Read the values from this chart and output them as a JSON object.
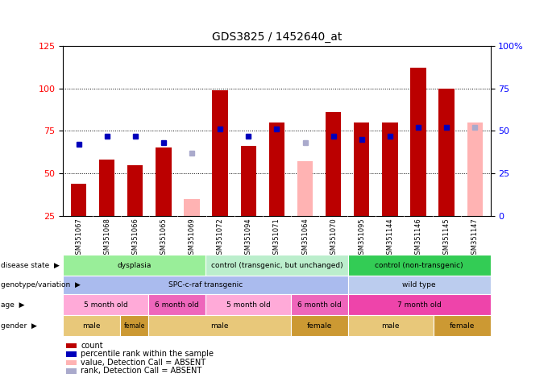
{
  "title": "GDS3825 / 1452640_at",
  "samples": [
    "GSM351067",
    "GSM351068",
    "GSM351066",
    "GSM351065",
    "GSM351069",
    "GSM351072",
    "GSM351094",
    "GSM351071",
    "GSM351064",
    "GSM351070",
    "GSM351095",
    "GSM351144",
    "GSM351146",
    "GSM351145",
    "GSM351147"
  ],
  "bar_values": [
    44,
    58,
    55,
    65,
    null,
    99,
    66,
    80,
    null,
    86,
    80,
    80,
    112,
    100,
    null
  ],
  "bar_absent_values": [
    null,
    null,
    null,
    null,
    35,
    null,
    null,
    null,
    57,
    null,
    null,
    null,
    null,
    null,
    80
  ],
  "blue_squares": [
    67,
    72,
    72,
    68,
    null,
    76,
    72,
    76,
    null,
    72,
    70,
    72,
    77,
    77,
    null
  ],
  "blue_absent_squares": [
    null,
    null,
    null,
    null,
    62,
    null,
    null,
    null,
    68,
    null,
    null,
    null,
    null,
    null,
    77
  ],
  "ylim_left": [
    25,
    125
  ],
  "ylim_right": [
    0,
    100
  ],
  "yticks_left": [
    25,
    50,
    75,
    100,
    125
  ],
  "ytick_labels_right": [
    "0",
    "25",
    "50",
    "75",
    "100%"
  ],
  "yticks_right": [
    0,
    25,
    50,
    75,
    100
  ],
  "bar_color": "#bb0000",
  "bar_absent_color": "#ffb3b3",
  "blue_color": "#0000bb",
  "blue_absent_color": "#aaaacc",
  "plot_bg": "#ffffff",
  "xticklabel_bg": "#cccccc",
  "disease_state_row": {
    "label": "disease state",
    "segments": [
      {
        "text": "dysplasia",
        "start": 0,
        "end": 5,
        "color": "#99ee99"
      },
      {
        "text": "control (transgenic, but unchanged)",
        "start": 5,
        "end": 10,
        "color": "#bbeecc"
      },
      {
        "text": "control (non-transgenic)",
        "start": 10,
        "end": 15,
        "color": "#33cc55"
      }
    ]
  },
  "genotype_row": {
    "label": "genotype/variation",
    "segments": [
      {
        "text": "SPC-c-raf transgenic",
        "start": 0,
        "end": 10,
        "color": "#aabbee"
      },
      {
        "text": "wild type",
        "start": 10,
        "end": 15,
        "color": "#bbccee"
      }
    ]
  },
  "age_row": {
    "label": "age",
    "segments": [
      {
        "text": "5 month old",
        "start": 0,
        "end": 3,
        "color": "#ffaad8"
      },
      {
        "text": "6 month old",
        "start": 3,
        "end": 5,
        "color": "#ee66bb"
      },
      {
        "text": "5 month old",
        "start": 5,
        "end": 8,
        "color": "#ffaad8"
      },
      {
        "text": "6 month old",
        "start": 8,
        "end": 10,
        "color": "#ee66bb"
      },
      {
        "text": "7 month old",
        "start": 10,
        "end": 15,
        "color": "#ee44aa"
      }
    ]
  },
  "gender_row": {
    "label": "gender",
    "segments": [
      {
        "text": "male",
        "start": 0,
        "end": 2,
        "color": "#e8c87a"
      },
      {
        "text": "female",
        "start": 2,
        "end": 3,
        "color": "#cc9933"
      },
      {
        "text": "male",
        "start": 3,
        "end": 8,
        "color": "#e8c87a"
      },
      {
        "text": "female",
        "start": 8,
        "end": 10,
        "color": "#cc9933"
      },
      {
        "text": "male",
        "start": 10,
        "end": 13,
        "color": "#e8c87a"
      },
      {
        "text": "female",
        "start": 13,
        "end": 15,
        "color": "#cc9933"
      }
    ]
  },
  "legend_items": [
    {
      "label": "count",
      "color": "#bb0000"
    },
    {
      "label": "percentile rank within the sample",
      "color": "#0000bb"
    },
    {
      "label": "value, Detection Call = ABSENT",
      "color": "#ffb3b3"
    },
    {
      "label": "rank, Detection Call = ABSENT",
      "color": "#aaaacc"
    }
  ]
}
